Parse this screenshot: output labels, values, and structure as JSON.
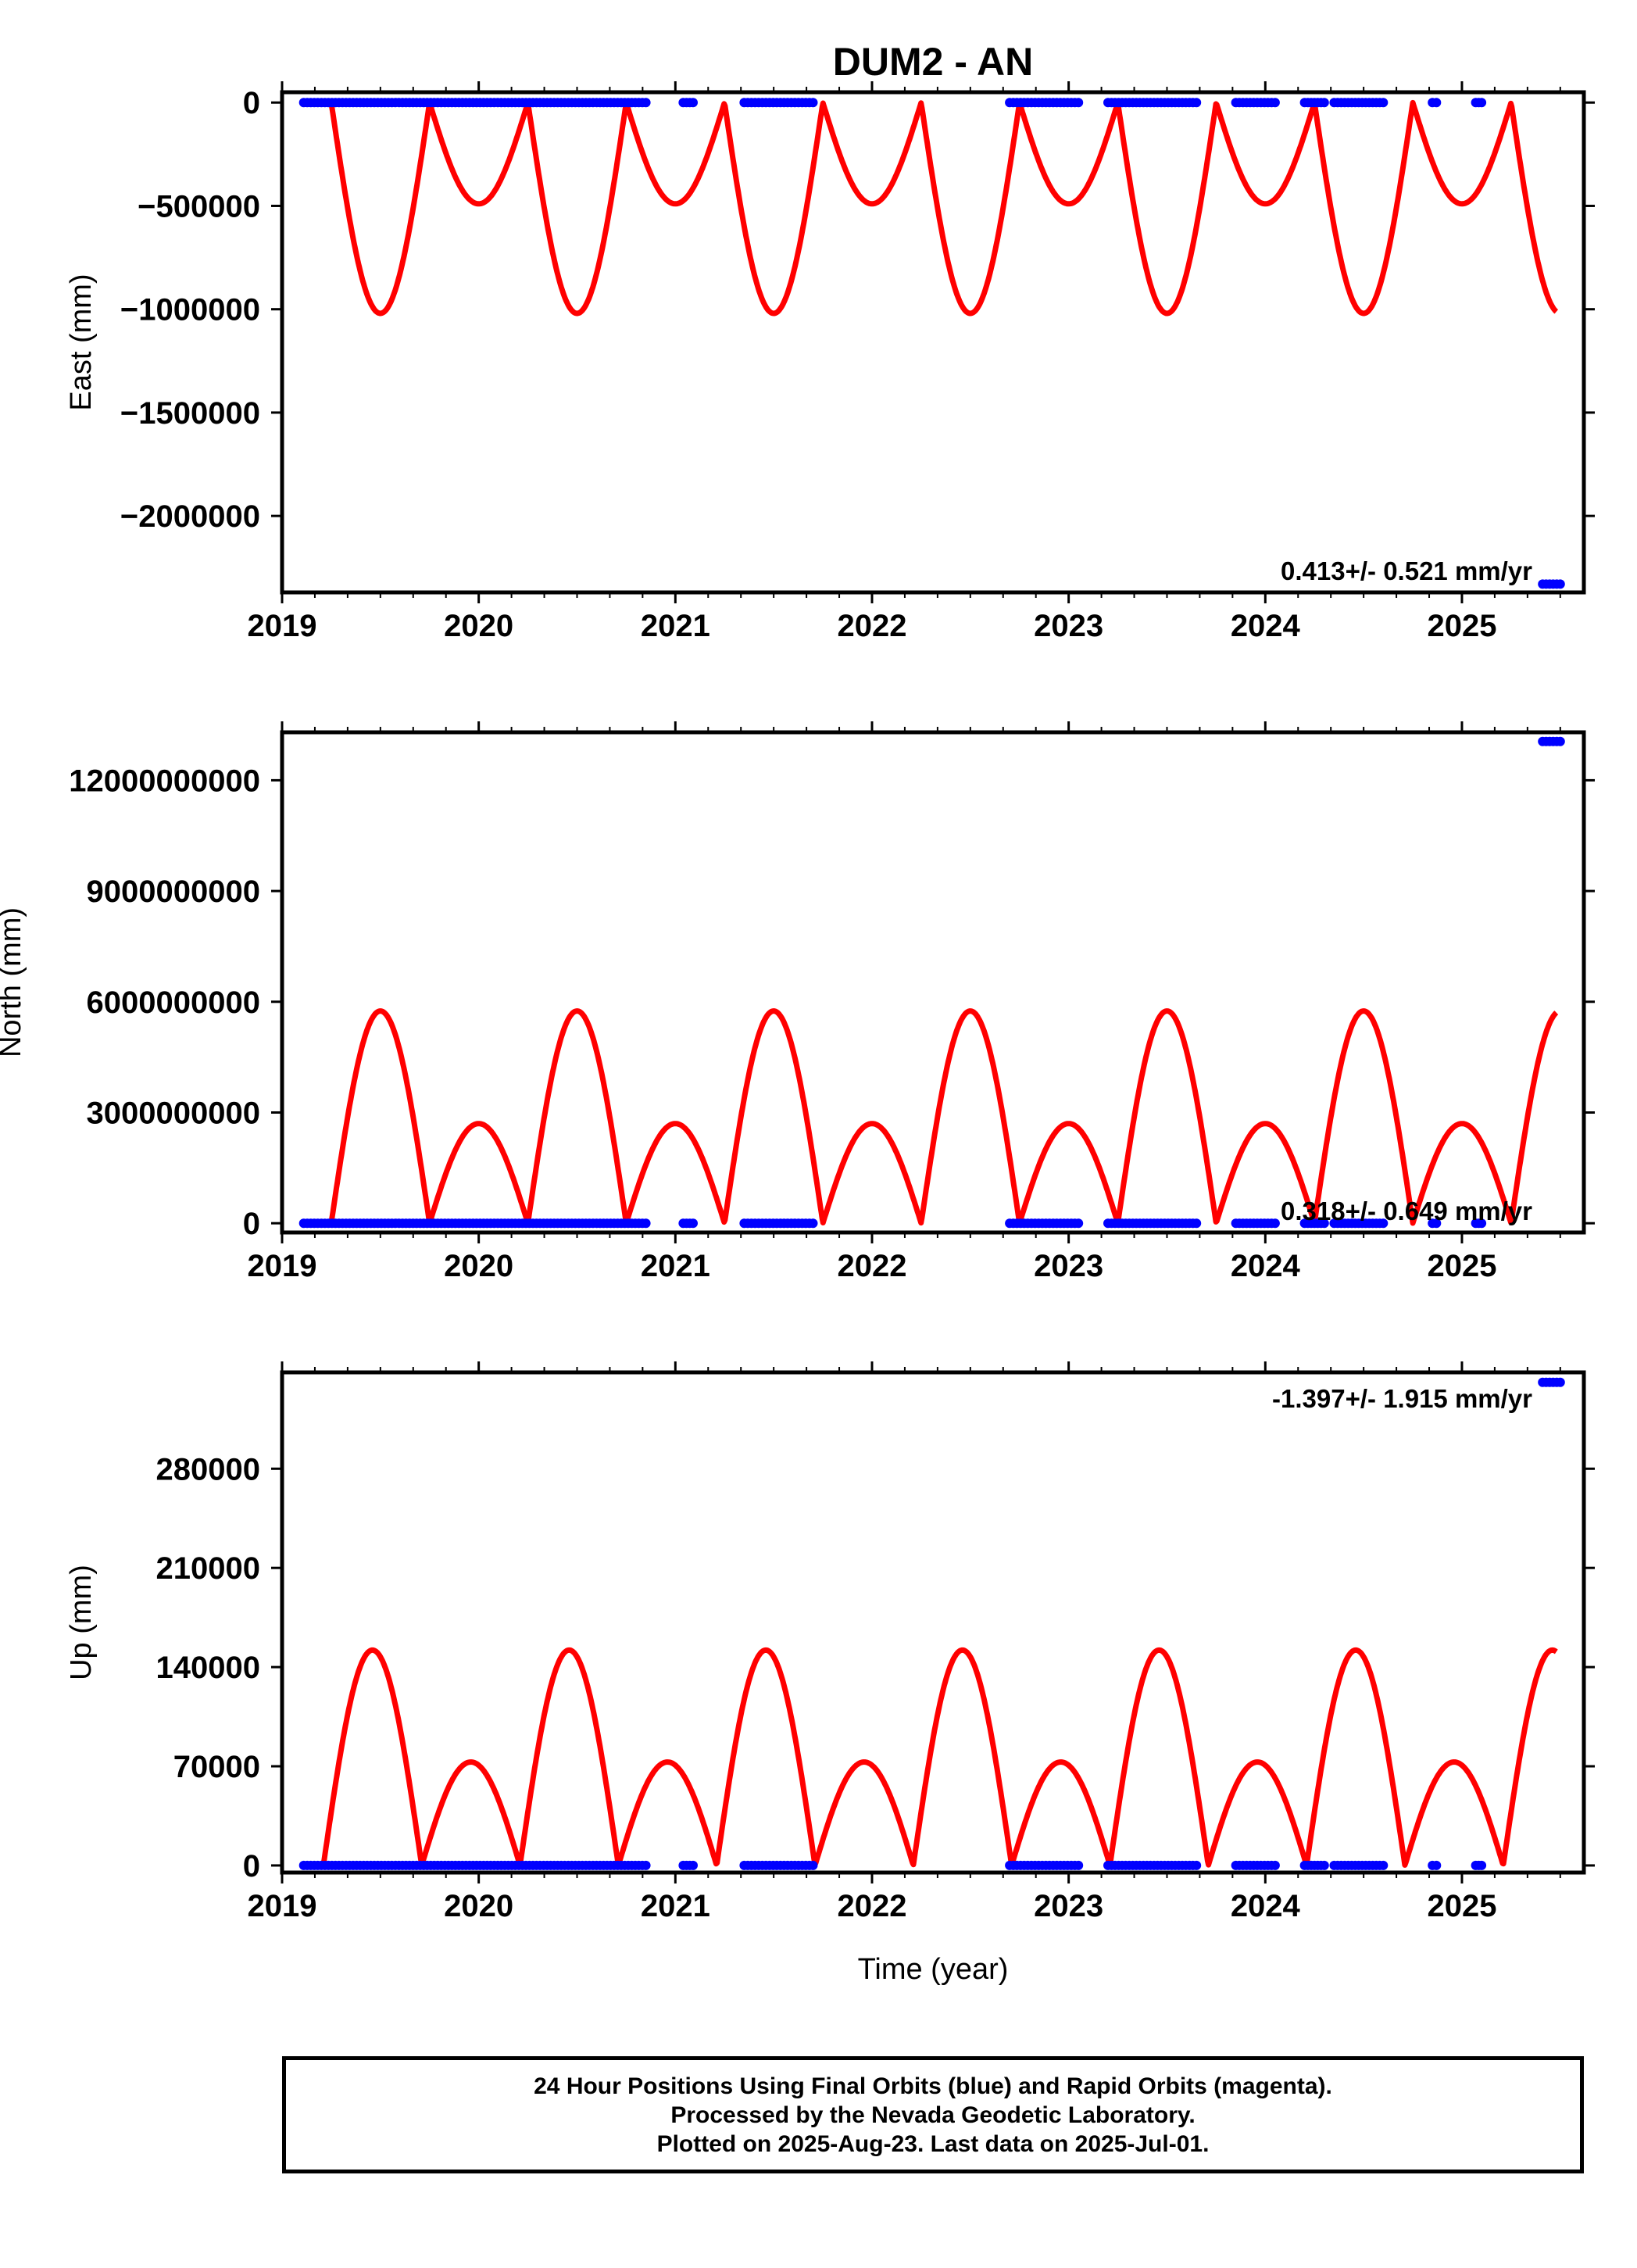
{
  "title": "DUM2 - AN",
  "colors": {
    "model": "#ff0000",
    "final": "#0000ff",
    "frame": "#000000"
  },
  "xlabel": "Time (year)",
  "footer": {
    "line1": "24 Hour Positions Using Final Orbits (blue) and Rapid Orbits (magenta).",
    "line2": "Processed by the Nevada Geodetic Laboratory.",
    "line3": "Plotted on 2025-Aug-23. Last data on 2025-Jul-01."
  },
  "chart_data": [
    {
      "type": "scatter",
      "component": "east",
      "ylabel": "East (mm)",
      "xlim": [
        2019.0,
        2025.62
      ],
      "ylim": [
        -2370000,
        50000
      ],
      "x_ticks": [
        "2019",
        "2020",
        "2021",
        "2022",
        "2023",
        "2024",
        "2025"
      ],
      "y_ticks": [
        "0",
        "−500000",
        "−1000000",
        "−1500000",
        "−2000000"
      ],
      "y_tick_values": [
        0,
        -500000,
        -1000000,
        -1500000,
        -2000000
      ],
      "rate_label": "0.413+/- 0.521 mm/yr",
      "model_curve": {
        "color": "#ff0000",
        "period_years": 1.0,
        "big_peak": -1020000,
        "small_peak": -490000,
        "start": 2019.25,
        "end": 2025.48
      },
      "final_orbit_segments": [
        {
          "from": 2019.11,
          "to": 2020.85,
          "value": 0
        },
        {
          "from": 2021.04,
          "to": 2021.09,
          "value": 0
        },
        {
          "from": 2021.35,
          "to": 2021.7,
          "value": 0
        },
        {
          "from": 2022.7,
          "to": 2023.05,
          "value": 0
        },
        {
          "from": 2023.2,
          "to": 2023.65,
          "value": 0
        },
        {
          "from": 2023.85,
          "to": 2024.05,
          "value": 0
        },
        {
          "from": 2024.2,
          "to": 2024.3,
          "value": 0
        },
        {
          "from": 2024.35,
          "to": 2024.6,
          "value": 0
        },
        {
          "from": 2024.85,
          "to": 2024.87,
          "value": 0
        },
        {
          "from": 2025.07,
          "to": 2025.1,
          "value": 0
        },
        {
          "from": 2025.41,
          "to": 2025.5,
          "value": -2330000
        }
      ]
    },
    {
      "type": "scatter",
      "component": "north",
      "ylabel": "North (mm)",
      "xlim": [
        2019.0,
        2025.62
      ],
      "ylim": [
        -250000000,
        13300000000
      ],
      "x_ticks": [
        "2019",
        "2020",
        "2021",
        "2022",
        "2023",
        "2024",
        "2025"
      ],
      "y_ticks": [
        "0",
        "3000000000",
        "6000000000",
        "9000000000",
        "12000000000"
      ],
      "y_tick_values": [
        0,
        3000000000,
        6000000000,
        9000000000,
        12000000000
      ],
      "rate_label": "0.318+/- 0.649 mm/yr",
      "model_curve": {
        "color": "#ff0000",
        "period_years": 1.0,
        "big_peak": 5750000000,
        "small_peak": 2700000000,
        "start": 2019.25,
        "end": 2025.48
      },
      "final_orbit_segments": [
        {
          "from": 2019.11,
          "to": 2020.85,
          "value": 0
        },
        {
          "from": 2021.04,
          "to": 2021.09,
          "value": 0
        },
        {
          "from": 2021.35,
          "to": 2021.7,
          "value": 0
        },
        {
          "from": 2022.7,
          "to": 2023.05,
          "value": 0
        },
        {
          "from": 2023.2,
          "to": 2023.65,
          "value": 0
        },
        {
          "from": 2023.85,
          "to": 2024.05,
          "value": 0
        },
        {
          "from": 2024.2,
          "to": 2024.3,
          "value": 0
        },
        {
          "from": 2024.35,
          "to": 2024.6,
          "value": 0
        },
        {
          "from": 2024.85,
          "to": 2024.87,
          "value": 0
        },
        {
          "from": 2025.07,
          "to": 2025.1,
          "value": 0
        },
        {
          "from": 2025.41,
          "to": 2025.5,
          "value": 13050000000
        }
      ]
    },
    {
      "type": "scatter",
      "component": "up",
      "ylabel": "Up (mm)",
      "xlim": [
        2019.0,
        2025.62
      ],
      "ylim": [
        -5000,
        348000
      ],
      "x_ticks": [
        "2019",
        "2020",
        "2021",
        "2022",
        "2023",
        "2024",
        "2025"
      ],
      "y_ticks": [
        "0",
        "70000",
        "140000",
        "210000",
        "280000"
      ],
      "y_tick_values": [
        0,
        70000,
        140000,
        210000,
        280000
      ],
      "rate_label": "-1.397+/- 1.915 mm/yr",
      "model_curve": {
        "color": "#ff0000",
        "period_years": 1.0,
        "big_peak": 152000,
        "small_peak": 73000,
        "start": 2019.21,
        "end": 2025.48
      },
      "final_orbit_segments": [
        {
          "from": 2019.11,
          "to": 2020.85,
          "value": 0
        },
        {
          "from": 2021.04,
          "to": 2021.09,
          "value": 0
        },
        {
          "from": 2021.35,
          "to": 2021.7,
          "value": 0
        },
        {
          "from": 2022.7,
          "to": 2023.05,
          "value": 0
        },
        {
          "from": 2023.2,
          "to": 2023.65,
          "value": 0
        },
        {
          "from": 2023.85,
          "to": 2024.05,
          "value": 0
        },
        {
          "from": 2024.2,
          "to": 2024.3,
          "value": 0
        },
        {
          "from": 2024.35,
          "to": 2024.6,
          "value": 0
        },
        {
          "from": 2024.85,
          "to": 2024.87,
          "value": 0
        },
        {
          "from": 2025.07,
          "to": 2025.1,
          "value": 0
        },
        {
          "from": 2025.41,
          "to": 2025.5,
          "value": 341000
        }
      ]
    }
  ]
}
